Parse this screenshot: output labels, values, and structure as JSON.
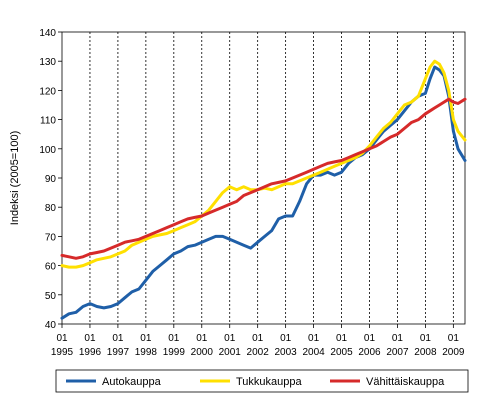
{
  "chart_data": {
    "type": "line",
    "title": "",
    "xlabel": "",
    "ylabel": "Indeksi (2005=100)",
    "ylim": [
      40,
      140
    ],
    "y_ticks": [
      "40",
      "50",
      "60",
      "70",
      "80",
      "90",
      "100",
      "110",
      "120",
      "130",
      "140"
    ],
    "x_start": "1995-01",
    "x_end": "2009-06",
    "x_tick_top": "01",
    "x_tick_years": [
      "1995",
      "1996",
      "1997",
      "1998",
      "1999",
      "2000",
      "2001",
      "2002",
      "2003",
      "2004",
      "2005",
      "2006",
      "2007",
      "2008",
      "2009"
    ],
    "grid": "vertical dashed at each January",
    "legend_position": "bottom",
    "series": [
      {
        "name": "Autokauppa",
        "color": "#1f5fa8",
        "x": [
          "1995-01",
          "1995-04",
          "1995-07",
          "1995-10",
          "1996-01",
          "1996-04",
          "1996-07",
          "1996-10",
          "1997-01",
          "1997-04",
          "1997-07",
          "1997-10",
          "1998-01",
          "1998-04",
          "1998-07",
          "1998-10",
          "1999-01",
          "1999-04",
          "1999-07",
          "1999-10",
          "2000-01",
          "2000-04",
          "2000-07",
          "2000-10",
          "2001-01",
          "2001-04",
          "2001-07",
          "2001-10",
          "2002-01",
          "2002-04",
          "2002-07",
          "2002-10",
          "2003-01",
          "2003-04",
          "2003-07",
          "2003-10",
          "2004-01",
          "2004-04",
          "2004-07",
          "2004-10",
          "2005-01",
          "2005-04",
          "2005-07",
          "2005-10",
          "2006-01",
          "2006-04",
          "2006-07",
          "2006-10",
          "2007-01",
          "2007-04",
          "2007-07",
          "2007-10",
          "2008-01",
          "2008-03",
          "2008-05",
          "2008-07",
          "2008-09",
          "2008-11",
          "2009-01",
          "2009-03",
          "2009-06"
        ],
        "values": [
          42,
          43.5,
          44,
          46,
          47,
          46,
          45.5,
          46,
          47,
          49,
          51,
          52,
          55,
          58,
          60,
          62,
          64,
          65,
          66.5,
          67,
          68,
          69,
          70,
          70,
          69,
          68,
          67,
          66,
          68,
          70,
          72,
          76,
          77,
          77,
          82,
          88,
          91,
          91,
          92,
          91,
          92,
          95,
          97,
          98,
          100,
          103,
          106,
          108,
          110,
          113,
          116,
          118,
          119,
          124,
          128,
          127,
          125,
          118,
          106,
          100,
          96
        ]
      },
      {
        "name": "Tukkukauppa",
        "color": "#ffe000",
        "x": [
          "1995-01",
          "1995-04",
          "1995-07",
          "1995-10",
          "1996-01",
          "1996-04",
          "1996-07",
          "1996-10",
          "1997-01",
          "1997-04",
          "1997-07",
          "1997-10",
          "1998-01",
          "1998-04",
          "1998-07",
          "1998-10",
          "1999-01",
          "1999-04",
          "1999-07",
          "1999-10",
          "2000-01",
          "2000-04",
          "2000-07",
          "2000-10",
          "2001-01",
          "2001-04",
          "2001-07",
          "2001-10",
          "2002-01",
          "2002-04",
          "2002-07",
          "2002-10",
          "2003-01",
          "2003-04",
          "2003-07",
          "2003-10",
          "2004-01",
          "2004-04",
          "2004-07",
          "2004-10",
          "2005-01",
          "2005-04",
          "2005-07",
          "2005-10",
          "2006-01",
          "2006-04",
          "2006-07",
          "2006-10",
          "2007-01",
          "2007-04",
          "2007-07",
          "2007-10",
          "2008-01",
          "2008-03",
          "2008-05",
          "2008-07",
          "2008-09",
          "2008-11",
          "2009-01",
          "2009-03",
          "2009-06"
        ],
        "values": [
          60,
          59.5,
          59.5,
          60,
          61,
          62,
          62.5,
          63,
          64,
          65,
          67,
          68,
          69,
          70,
          70.5,
          71,
          72,
          73,
          74,
          75,
          77,
          79,
          82,
          85,
          87,
          86,
          87,
          86,
          86,
          86.5,
          86,
          87,
          88,
          88,
          89,
          90,
          91,
          92,
          93,
          94,
          95,
          96,
          97,
          98.5,
          101,
          104,
          107,
          109,
          112,
          115,
          116,
          118,
          124,
          128,
          130,
          129,
          126,
          120,
          110,
          106,
          103
        ]
      },
      {
        "name": "Vähittäiskauppa",
        "color": "#d62a2a",
        "x": [
          "1995-01",
          "1995-04",
          "1995-07",
          "1995-10",
          "1996-01",
          "1996-04",
          "1996-07",
          "1996-10",
          "1997-01",
          "1997-04",
          "1997-07",
          "1997-10",
          "1998-01",
          "1998-04",
          "1998-07",
          "1998-10",
          "1999-01",
          "1999-04",
          "1999-07",
          "1999-10",
          "2000-01",
          "2000-04",
          "2000-07",
          "2000-10",
          "2001-01",
          "2001-04",
          "2001-07",
          "2001-10",
          "2002-01",
          "2002-04",
          "2002-07",
          "2002-10",
          "2003-01",
          "2003-04",
          "2003-07",
          "2003-10",
          "2004-01",
          "2004-04",
          "2004-07",
          "2004-10",
          "2005-01",
          "2005-04",
          "2005-07",
          "2005-10",
          "2006-01",
          "2006-04",
          "2006-07",
          "2006-10",
          "2007-01",
          "2007-04",
          "2007-07",
          "2007-10",
          "2008-01",
          "2008-03",
          "2008-05",
          "2008-07",
          "2008-09",
          "2008-11",
          "2009-01",
          "2009-03",
          "2009-06"
        ],
        "values": [
          63.5,
          63,
          62.5,
          63,
          64,
          64.5,
          65,
          66,
          67,
          68,
          68.5,
          69,
          70,
          71,
          72,
          73,
          74,
          75,
          76,
          76.5,
          77,
          78,
          79,
          80,
          81,
          82,
          84,
          85,
          86,
          87,
          88,
          88.5,
          89,
          90,
          91,
          92,
          93,
          94,
          95,
          95.5,
          96,
          97,
          98,
          99,
          100,
          101,
          102.5,
          104,
          105,
          107,
          109,
          110,
          112,
          113,
          114,
          115,
          116,
          117,
          116,
          115.5,
          117
        ]
      }
    ]
  }
}
